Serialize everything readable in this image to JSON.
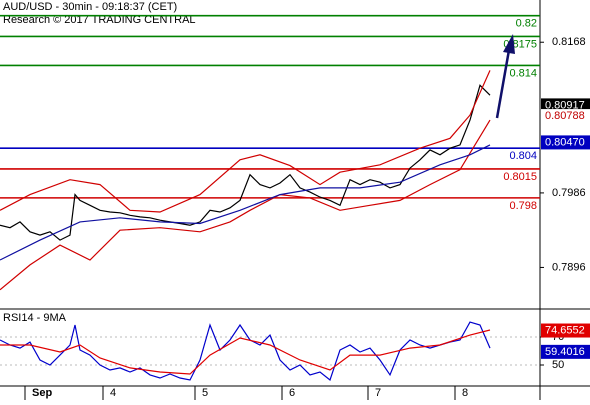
{
  "chart_data": [
    {
      "type": "line",
      "title": "AUD/USD - 30min - 09:18:37 (CET)",
      "subtitle": "Research © 2017 TRADING CENTRAL",
      "xlim": [
        0,
        540
      ],
      "ylim": [
        0.7847,
        0.8219
      ],
      "yticks": [
        0.8168,
        0.7986,
        0.7896
      ],
      "levels": [
        {
          "value": 0.82,
          "color": "#008000"
        },
        {
          "value": 0.8175,
          "color": "#008000"
        },
        {
          "value": 0.814,
          "color": "#008000"
        },
        {
          "value": 0.804,
          "color": "#0000c0"
        },
        {
          "value": 0.8015,
          "color": "#d00000"
        },
        {
          "value": 0.798,
          "color": "#d00000"
        }
      ],
      "tags": [
        {
          "value": 0.80917,
          "color": "#000000"
        },
        {
          "value": 0.80788,
          "color": "#c00000"
        },
        {
          "value": {
            "value": 0.8047,
            "label": "0.80470"
          },
          "color": "#0000c0"
        }
      ],
      "series": [
        {
          "color": "#000000",
          "x": [
            0,
            10,
            20,
            30,
            40,
            50,
            60,
            70,
            75,
            80,
            90,
            100,
            110,
            120,
            130,
            140,
            150,
            160,
            170,
            180,
            190,
            200,
            210,
            220,
            230,
            240,
            250,
            260,
            270,
            280,
            290,
            300,
            310,
            320,
            330,
            340,
            350,
            360,
            370,
            380,
            390,
            400,
            410,
            420,
            430,
            440,
            450,
            460,
            470,
            480,
            490
          ],
          "values": [
            0.7947,
            0.7944,
            0.7951,
            0.7939,
            0.7935,
            0.7939,
            0.7929,
            0.7935,
            0.7984,
            0.7977,
            0.7971,
            0.7965,
            0.7963,
            0.7962,
            0.7959,
            0.7957,
            0.7956,
            0.7953,
            0.7951,
            0.7949,
            0.7947,
            0.7951,
            0.7965,
            0.7963,
            0.7968,
            0.7977,
            0.8008,
            0.7996,
            0.7992,
            0.7998,
            0.8008,
            0.7992,
            0.7987,
            0.7981,
            0.7977,
            0.7971,
            0.8002,
            0.7996,
            0.8002,
            0.7999,
            0.7992,
            0.7996,
            0.8016,
            0.8026,
            0.8038,
            0.8032,
            0.804,
            0.8044,
            0.8074,
            0.8116,
            0.8104
          ]
        },
        {
          "color": "#d00000",
          "x": [
            0,
            30,
            70,
            100,
            130,
            160,
            200,
            240,
            260,
            290,
            320,
            340,
            380,
            420,
            450,
            470,
            490
          ],
          "values": [
            0.7965,
            0.7984,
            0.8002,
            0.7996,
            0.7965,
            0.7963,
            0.7984,
            0.8026,
            0.8032,
            0.8019,
            0.7996,
            0.8011,
            0.802,
            0.804,
            0.8052,
            0.808,
            0.8134
          ]
        },
        {
          "color": "#d00000",
          "x": [
            0,
            30,
            60,
            90,
            120,
            160,
            200,
            230,
            250,
            280,
            310,
            340,
            370,
            400,
            430,
            460,
            490
          ],
          "values": [
            0.7869,
            0.7899,
            0.7923,
            0.7905,
            0.7941,
            0.7944,
            0.7939,
            0.7951,
            0.7965,
            0.7984,
            0.798,
            0.7965,
            0.7971,
            0.7977,
            0.7996,
            0.8014,
            0.8074
          ]
        },
        {
          "color": "#1010a0",
          "x": [
            0,
            40,
            80,
            120,
            160,
            200,
            240,
            280,
            320,
            360,
            400,
            440,
            470,
            490
          ],
          "values": [
            0.7905,
            0.7929,
            0.7951,
            0.7956,
            0.7951,
            0.7949,
            0.7965,
            0.7984,
            0.7992,
            0.7992,
            0.7999,
            0.802,
            0.8032,
            0.8044
          ]
        }
      ]
    },
    {
      "type": "line",
      "title": "RSI14 - 9MA",
      "xlim": [
        0,
        540
      ],
      "ylim": [
        35.7,
        87.9
      ],
      "yticks": [
        70,
        50
      ],
      "xticks": [
        {
          "value": 25,
          "label": "Sep"
        },
        {
          "value": 103,
          "label": "4"
        },
        {
          "value": 195,
          "label": "5"
        },
        {
          "value": 282,
          "label": "6"
        },
        {
          "value": 368,
          "label": "7"
        },
        {
          "value": 455,
          "label": "8"
        }
      ],
      "tags": [
        {
          "value": 74.6552,
          "color": "#e00000"
        },
        {
          "value": 59.4016,
          "color": "#0000c0"
        }
      ],
      "series": [
        {
          "color": "#0000cc",
          "x": [
            0,
            10,
            20,
            30,
            40,
            50,
            60,
            70,
            75,
            80,
            90,
            100,
            110,
            120,
            130,
            140,
            150,
            160,
            170,
            180,
            190,
            200,
            210,
            220,
            230,
            240,
            250,
            260,
            270,
            280,
            290,
            300,
            310,
            320,
            330,
            340,
            350,
            360,
            370,
            380,
            390,
            400,
            410,
            420,
            430,
            440,
            450,
            460,
            470,
            480,
            490
          ],
          "values": [
            67.9,
            64.3,
            62.1,
            66.4,
            53.6,
            50,
            57.1,
            64.3,
            78.6,
            60.7,
            57.1,
            50,
            46.4,
            47.9,
            45,
            47.9,
            42.9,
            40.7,
            43.6,
            40.7,
            39.3,
            53.6,
            78.6,
            60.7,
            67.9,
            78.6,
            67.9,
            64.3,
            71.4,
            53.6,
            46.4,
            50,
            42.9,
            45,
            39.3,
            60.7,
            64.3,
            59.3,
            62.1,
            53.6,
            42.9,
            60.7,
            67.9,
            64.3,
            62.1,
            64.3,
            66.4,
            67.9,
            80.7,
            78.6,
            62.1
          ]
        },
        {
          "color": "#e00000",
          "x": [
            0,
            30,
            60,
            80,
            100,
            130,
            160,
            190,
            210,
            240,
            270,
            300,
            330,
            350,
            380,
            410,
            440,
            470,
            490
          ],
          "values": [
            64.3,
            64.3,
            59.3,
            64.3,
            55,
            47.9,
            45,
            43.6,
            57.1,
            69.3,
            64.3,
            53.6,
            46.4,
            57.1,
            57.1,
            62.1,
            64.3,
            71.4,
            75
          ]
        }
      ]
    }
  ]
}
